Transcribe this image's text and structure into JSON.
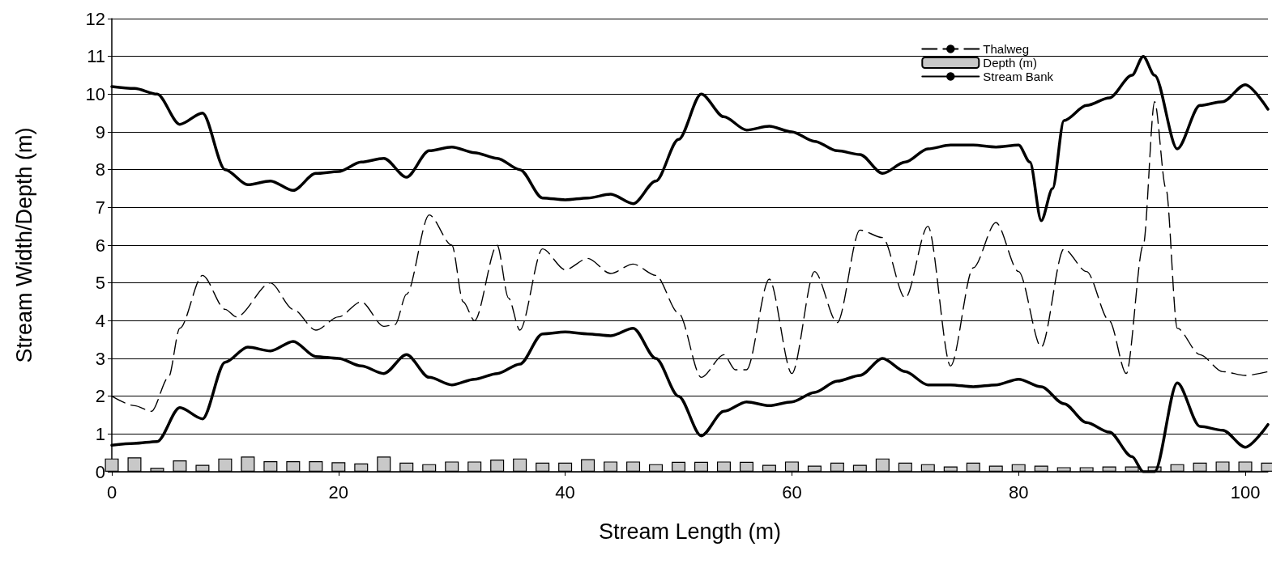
{
  "chart_data": {
    "type": "line",
    "xlabel": "Stream Length (m)",
    "ylabel": "Stream Width/Depth (m)",
    "xlim": [
      0,
      102
    ],
    "ylim": [
      0,
      12
    ],
    "xticks": [
      0,
      20,
      40,
      60,
      80,
      100
    ],
    "yticks": [
      0,
      1,
      2,
      3,
      4,
      5,
      6,
      7,
      8,
      9,
      10,
      11,
      12
    ],
    "grid": "y",
    "legend": "top right",
    "marker": "none",
    "series": [
      {
        "name": "Thalweg",
        "line_style": "dashed",
        "color": "#000000",
        "x": [
          0,
          2,
          3.5,
          5,
          6,
          8,
          10,
          11,
          14,
          16,
          18,
          20,
          22,
          24,
          25,
          26,
          28,
          30,
          31,
          32,
          34,
          35,
          36,
          38,
          40,
          42,
          44,
          46,
          48,
          50,
          52,
          54,
          55,
          56,
          58,
          60,
          62,
          64,
          66,
          68,
          70,
          72,
          74,
          76,
          78,
          80,
          82,
          84,
          86,
          88,
          89.5,
          91,
          92,
          93,
          94,
          96,
          98,
          100,
          102
        ],
        "values": [
          2.0,
          1.75,
          1.6,
          2.5,
          3.8,
          5.2,
          4.3,
          4.1,
          5.0,
          4.3,
          3.75,
          4.1,
          4.5,
          3.85,
          3.9,
          4.7,
          6.8,
          6.0,
          4.5,
          4.0,
          6.0,
          4.6,
          3.75,
          5.9,
          5.35,
          5.65,
          5.25,
          5.5,
          5.2,
          4.2,
          2.5,
          3.1,
          2.7,
          2.7,
          5.1,
          2.6,
          5.3,
          3.95,
          6.4,
          6.2,
          4.6,
          6.5,
          2.8,
          5.4,
          6.6,
          5.3,
          3.3,
          5.9,
          5.3,
          4.0,
          2.6,
          6.0,
          9.8,
          7.5,
          3.8,
          3.1,
          2.65,
          2.55,
          2.65
        ]
      },
      {
        "name": "Depth (m)",
        "type": "bar",
        "color": "#c8c8c8",
        "x": [
          0,
          2,
          4,
          6,
          8,
          10,
          12,
          14,
          16,
          18,
          20,
          22,
          24,
          26,
          28,
          30,
          32,
          34,
          36,
          38,
          40,
          42,
          44,
          46,
          48,
          50,
          52,
          54,
          56,
          58,
          60,
          62,
          64,
          66,
          68,
          70,
          72,
          74,
          76,
          78,
          80,
          82,
          84,
          86,
          88,
          90,
          92,
          94,
          96,
          98,
          100,
          102
        ],
        "values": [
          0.35,
          0.38,
          0.1,
          0.3,
          0.18,
          0.35,
          0.4,
          0.28,
          0.28,
          0.28,
          0.25,
          0.22,
          0.4,
          0.24,
          0.2,
          0.27,
          0.27,
          0.32,
          0.35,
          0.24,
          0.24,
          0.33,
          0.27,
          0.27,
          0.2,
          0.26,
          0.26,
          0.27,
          0.26,
          0.18,
          0.27,
          0.16,
          0.24,
          0.18,
          0.35,
          0.24,
          0.2,
          0.14,
          0.24,
          0.16,
          0.2,
          0.16,
          0.12,
          0.12,
          0.14,
          0.14,
          0.14,
          0.2,
          0.24,
          0.27,
          0.27,
          0.24
        ]
      },
      {
        "name": "Stream Bank",
        "line_style": "solid",
        "color": "#000000",
        "x": [
          0,
          2,
          4,
          6,
          8,
          10,
          12,
          14,
          16,
          18,
          20,
          22,
          24,
          26,
          28,
          30,
          32,
          34,
          36,
          38,
          40,
          42,
          44,
          46,
          48,
          50,
          52,
          54,
          56,
          58,
          60,
          62,
          64,
          66,
          68,
          70,
          72,
          74,
          76,
          78,
          80,
          81,
          82,
          83,
          84,
          86,
          88,
          90,
          91,
          92,
          94,
          96,
          98,
          100,
          102
        ],
        "values": [
          10.2,
          10.15,
          10.0,
          9.2,
          9.5,
          8.0,
          7.6,
          7.7,
          7.45,
          7.9,
          7.95,
          8.2,
          8.3,
          7.8,
          8.5,
          8.6,
          8.45,
          8.3,
          8.0,
          7.25,
          7.2,
          7.25,
          7.35,
          7.1,
          7.7,
          8.8,
          10.0,
          9.4,
          9.05,
          9.15,
          9.0,
          8.75,
          8.5,
          8.4,
          7.9,
          8.2,
          8.55,
          8.65,
          8.65,
          8.6,
          8.65,
          8.2,
          6.65,
          7.5,
          9.3,
          9.7,
          9.9,
          10.5,
          11.0,
          10.5,
          8.55,
          9.7,
          9.8,
          10.25,
          9.6
        ]
      },
      {
        "line_style": "solid",
        "color": "#000000",
        "x": [
          0,
          2,
          4,
          6,
          8,
          10,
          12,
          14,
          16,
          18,
          20,
          22,
          24,
          26,
          28,
          30,
          32,
          34,
          36,
          38,
          40,
          42,
          44,
          46,
          48,
          50,
          52,
          54,
          56,
          58,
          60,
          62,
          64,
          66,
          68,
          70,
          72,
          74,
          76,
          78,
          80,
          82,
          84,
          86,
          88,
          90,
          91,
          92,
          94,
          96,
          98,
          100,
          102
        ],
        "values": [
          0.7,
          0.75,
          0.8,
          1.7,
          1.4,
          2.9,
          3.3,
          3.2,
          3.45,
          3.05,
          3.0,
          2.8,
          2.6,
          3.1,
          2.5,
          2.3,
          2.45,
          2.6,
          2.85,
          3.65,
          3.7,
          3.65,
          3.6,
          3.8,
          3.0,
          2.0,
          0.95,
          1.6,
          1.85,
          1.75,
          1.85,
          2.1,
          2.4,
          2.55,
          3.0,
          2.65,
          2.3,
          2.3,
          2.25,
          2.3,
          2.45,
          2.25,
          1.8,
          1.3,
          1.05,
          0.4,
          0,
          0,
          2.35,
          1.2,
          1.1,
          0.65,
          1.25
        ]
      }
    ]
  }
}
